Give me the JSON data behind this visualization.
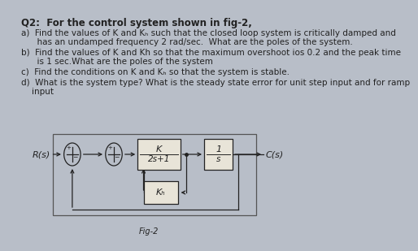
{
  "bg_color": "#b8bec8",
  "paper_color": "#e8e4d8",
  "title_text": "Q2:  For the control system shown in fig-2,",
  "line_a": "a)  Find the values of K and Kₕ such that the closed loop system is critically damped and",
  "line_a2": "      has an undamped frequency 2 rad/sec.  What are the poles of the system.",
  "line_b": "b)  Find the values of K and Kh so that the maximum overshoot ios 0.2 and the peak time",
  "line_b2": "      is 1 sec.What are the poles of the system",
  "line_c": "c)  Find the conditions on K and Kₕ so that the system is stable.",
  "line_d": "d)  What is the system type? What is the steady state error for unit step input and for ramp",
  "line_d2": "    input",
  "fig_caption": "Fig-2",
  "text_color": "#222222",
  "diag": {
    "rs_label": "R(s)",
    "cs_label": "C(s)",
    "block1_top": "K",
    "block1_bot": "2s+1",
    "block2_top": "1",
    "block2_bot": "s",
    "block3_label": "Kₕ",
    "rect_border": true
  }
}
